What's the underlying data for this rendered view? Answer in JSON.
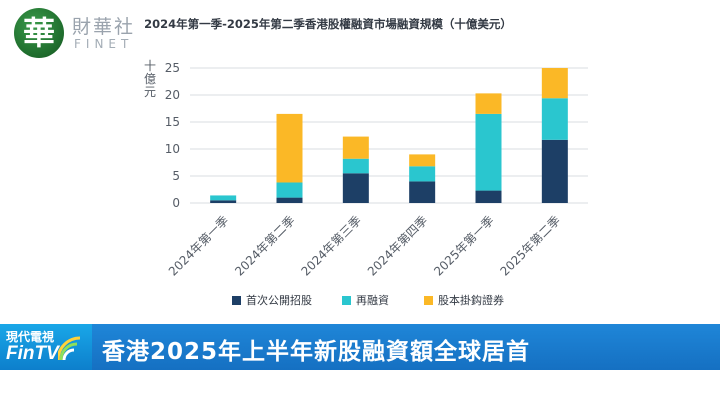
{
  "logo": {
    "glyph": "華",
    "name": "財華社",
    "sub": "FINET"
  },
  "chart_data": {
    "type": "bar",
    "stacked": true,
    "title": "2024年第一季-2025年第二季香港股權融資市場融資規模（十億美元）",
    "ylabel": "十億元",
    "xlabel": "",
    "ylim": [
      0,
      25
    ],
    "yticks": [
      0,
      5,
      10,
      15,
      20,
      25
    ],
    "grid": true,
    "legend_position": "bottom",
    "categories": [
      "2024年第一季",
      "2024年第二季",
      "2024年第三季",
      "2024年第四季",
      "2025年第一季",
      "2025年第二季"
    ],
    "series": [
      {
        "name": "首次公開招股",
        "color": "#1d3f66",
        "values": [
          0.5,
          1.0,
          5.5,
          4.0,
          2.3,
          11.7
        ]
      },
      {
        "name": "再融資",
        "color": "#2ac6cf",
        "values": [
          0.9,
          2.8,
          2.7,
          2.8,
          14.2,
          7.7
        ]
      },
      {
        "name": "股本掛鈎證券",
        "color": "#fbb826",
        "values": [
          0.0,
          12.7,
          4.1,
          2.2,
          3.8,
          5.6
        ]
      }
    ]
  },
  "banner": {
    "badge_top": "現代電視",
    "badge_main": "FinTV",
    "headline": "香港2025年上半年新股融資額全球居首"
  }
}
